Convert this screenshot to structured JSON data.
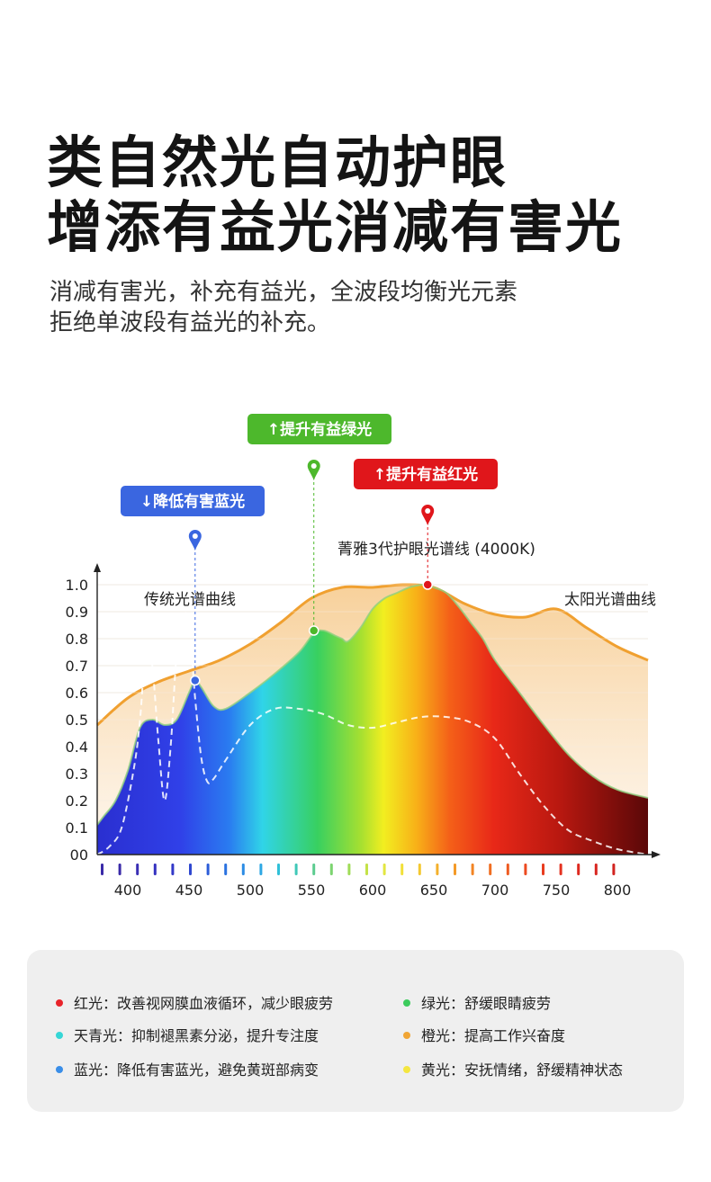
{
  "header": {
    "title_line1": "类自然光自动护眼",
    "title_line2": "增添有益光消减有害光",
    "subtitle_line1": "消减有害光，补充有益光，全波段均衡光元素",
    "subtitle_line2": "拒绝单波段有益光的补充。"
  },
  "chart_data": {
    "type": "area",
    "x_ticks": [
      "400",
      "450",
      "500",
      "550",
      "600",
      "650",
      "700",
      "750",
      "800"
    ],
    "y_ticks": [
      "00",
      "0.1",
      "0.2",
      "0.3",
      "0.4",
      "0.5",
      "0.6",
      "0.7",
      "0.8",
      "0.9",
      "1.0"
    ],
    "xlim": [
      375,
      825
    ],
    "ylim": [
      0,
      1.05
    ],
    "series": [
      {
        "name": "太阳光谱曲线",
        "color": "#f0a030",
        "x": [
          375,
          400,
          425,
          450,
          475,
          500,
          525,
          550,
          575,
          600,
          625,
          650,
          675,
          700,
          725,
          750,
          775,
          800,
          825
        ],
        "y": [
          0.48,
          0.58,
          0.64,
          0.68,
          0.72,
          0.78,
          0.86,
          0.95,
          0.99,
          0.99,
          1.0,
          0.99,
          0.93,
          0.89,
          0.88,
          0.91,
          0.84,
          0.77,
          0.72
        ]
      },
      {
        "name": "菁雅3代护眼光谱线 (4000K)",
        "color": "spectrum",
        "x": [
          375,
          380,
          390,
          400,
          410,
          420,
          430,
          440,
          450,
          455,
          460,
          470,
          480,
          500,
          520,
          540,
          552,
          560,
          570,
          575,
          580,
          590,
          600,
          610,
          620,
          630,
          640,
          645,
          650,
          660,
          670,
          680,
          690,
          700,
          720,
          740,
          760,
          780,
          800,
          825
        ],
        "y": [
          0.11,
          0.14,
          0.2,
          0.31,
          0.47,
          0.5,
          0.48,
          0.5,
          0.6,
          0.645,
          0.62,
          0.55,
          0.54,
          0.6,
          0.67,
          0.75,
          0.82,
          0.83,
          0.81,
          0.8,
          0.79,
          0.84,
          0.91,
          0.95,
          0.97,
          0.99,
          1.0,
          1.0,
          0.99,
          0.97,
          0.92,
          0.86,
          0.8,
          0.72,
          0.6,
          0.48,
          0.37,
          0.29,
          0.24,
          0.21
        ]
      },
      {
        "name": "传统光谱曲线",
        "color": "#ffffff",
        "dashed": true,
        "x": [
          375,
          385,
          395,
          405,
          410,
          415,
          420,
          425,
          430,
          435,
          440,
          445,
          450,
          455,
          460,
          465,
          470,
          480,
          500,
          520,
          540,
          560,
          580,
          600,
          620,
          640,
          660,
          680,
          700,
          720,
          740,
          760,
          780,
          800,
          825
        ],
        "y": [
          0.0,
          0.03,
          0.1,
          0.32,
          0.5,
          0.78,
          0.7,
          0.42,
          0.2,
          0.4,
          0.75,
          0.88,
          0.86,
          0.58,
          0.36,
          0.27,
          0.28,
          0.35,
          0.48,
          0.54,
          0.54,
          0.52,
          0.48,
          0.47,
          0.49,
          0.51,
          0.51,
          0.49,
          0.43,
          0.3,
          0.18,
          0.09,
          0.05,
          0.02,
          0.0
        ]
      }
    ],
    "annotations": [
      {
        "label": "↓降低有害蓝光",
        "x": 455,
        "y": 0.645,
        "color": "#3a66e0"
      },
      {
        "label": "↑提升有益绿光",
        "x": 552,
        "y": 0.83,
        "color": "#4db82c"
      },
      {
        "label": "↑提升有益红光",
        "x": 645,
        "y": 1.0,
        "color": "#e0161b"
      }
    ],
    "curve_labels": [
      "传统光谱曲线",
      "菁雅3代护眼光谱线 (4000K)",
      "太阳光谱曲线"
    ]
  },
  "legend": {
    "items": [
      {
        "label": "红光：改善视网膜血液循环，减少眼疲劳",
        "color": "#e8232a"
      },
      {
        "label": "天青光：抑制褪黑素分泌，提升专注度",
        "color": "#36d6d6"
      },
      {
        "label": "蓝光：降低有害蓝光，避免黄斑部病变",
        "color": "#3a8ee8"
      },
      {
        "label": "绿光：舒缓眼睛疲劳",
        "color": "#3ccb5c"
      },
      {
        "label": "橙光：提高工作兴奋度",
        "color": "#f0a535"
      },
      {
        "label": "黄光：安抚情绪，舒缓精神状态",
        "color": "#f4e640"
      }
    ]
  }
}
